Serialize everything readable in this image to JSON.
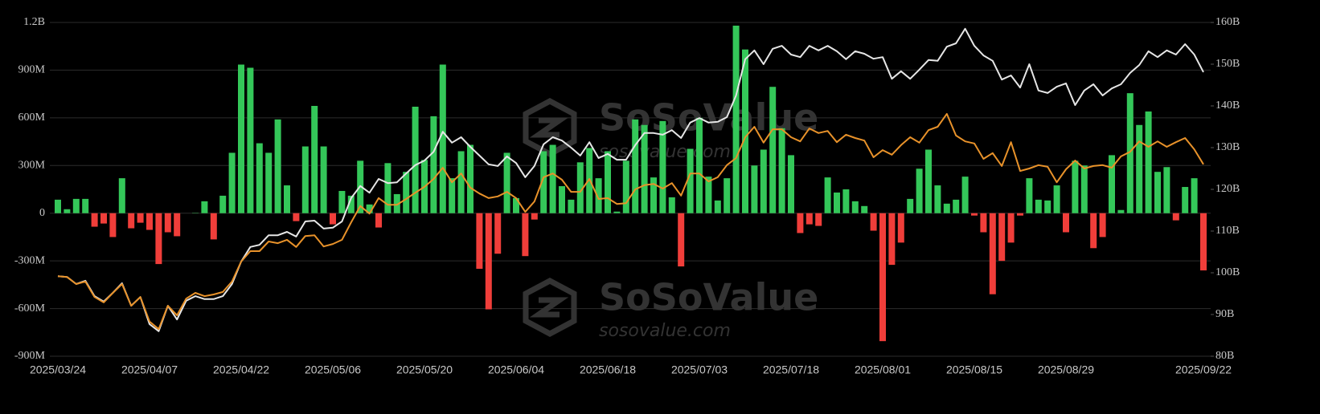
{
  "chart_data": {
    "type": "bar",
    "watermark": {
      "title": "SoSoValue",
      "url": "sosovalue.com"
    },
    "categories": [
      "2025/03/24",
      null,
      null,
      null,
      null,
      null,
      null,
      null,
      null,
      null,
      "2025/04/07",
      null,
      null,
      null,
      null,
      null,
      null,
      null,
      null,
      null,
      "2025/04/22",
      null,
      null,
      null,
      null,
      null,
      null,
      null,
      null,
      null,
      "2025/05/06",
      null,
      null,
      null,
      null,
      null,
      null,
      null,
      null,
      null,
      "2025/05/20",
      null,
      null,
      null,
      null,
      null,
      null,
      null,
      null,
      null,
      "2025/06/04",
      null,
      null,
      null,
      null,
      null,
      null,
      null,
      null,
      null,
      "2025/06/18",
      null,
      null,
      null,
      null,
      null,
      null,
      null,
      null,
      null,
      "2025/07/03",
      null,
      null,
      null,
      null,
      null,
      null,
      null,
      null,
      null,
      "2025/07/18",
      null,
      null,
      null,
      null,
      null,
      null,
      null,
      null,
      null,
      "2025/08/01",
      null,
      null,
      null,
      null,
      null,
      null,
      null,
      null,
      null,
      "2025/08/15",
      null,
      null,
      null,
      null,
      null,
      null,
      null,
      null,
      null,
      "2025/08/29",
      null,
      null,
      null,
      null,
      null,
      null,
      null,
      null,
      null,
      null,
      null,
      null,
      null,
      null,
      "2025/09/22"
    ],
    "series": [
      {
        "type": "bar",
        "color": "#34c759",
        "negative_color": "#f03e3a",
        "axis": "y",
        "values": [
          85,
          25,
          90,
          90,
          -85,
          -65,
          -150,
          220,
          -95,
          -60,
          -105,
          -320,
          -120,
          -145,
          0,
          2,
          75,
          -165,
          110,
          380,
          935,
          915,
          440,
          380,
          590,
          175,
          -50,
          420,
          675,
          420,
          -70,
          140,
          110,
          330,
          55,
          -90,
          315,
          120,
          260,
          670,
          335,
          610,
          935,
          220,
          390,
          430,
          -350,
          -605,
          -255,
          380,
          95,
          -270,
          -40,
          390,
          430,
          170,
          85,
          320,
          410,
          220,
          390,
          10,
          330,
          590,
          555,
          225,
          580,
          100,
          -335,
          405,
          600,
          230,
          80,
          220,
          1180,
          1030,
          300,
          400,
          795,
          535,
          365,
          -125,
          -70,
          -80,
          225,
          130,
          150,
          75,
          45,
          -110,
          -805,
          -325,
          -185,
          90,
          280,
          400,
          175,
          60,
          85,
          230,
          -15,
          -120,
          -510,
          -300,
          -185,
          -15,
          220,
          85,
          80,
          175,
          -120,
          330,
          300,
          -220,
          -150,
          365,
          20,
          755,
          555,
          640,
          260,
          290,
          -45,
          165,
          220,
          -360
        ]
      },
      {
        "type": "line",
        "color": "#e6e6e6",
        "axis": "y2",
        "values": [
          99.2,
          99.0,
          97.3,
          98.1,
          94.4,
          93.1,
          95.2,
          97.5,
          92.1,
          94.2,
          87.7,
          86.0,
          92.1,
          88.8,
          93.3,
          94.4,
          93.7,
          93.7,
          94.4,
          97.3,
          102.7,
          106.2,
          106.7,
          109.0,
          109.0,
          109.8,
          108.7,
          112.3,
          112.5,
          110.6,
          110.8,
          112.3,
          117.9,
          120.8,
          119.2,
          122.5,
          121.5,
          121.7,
          123.8,
          125.8,
          126.9,
          129.0,
          133.8,
          131.2,
          132.5,
          130.2,
          128.1,
          126.0,
          125.6,
          127.9,
          126.3,
          122.9,
          125.6,
          130.8,
          132.5,
          131.7,
          130.0,
          128.1,
          131.3,
          127.5,
          128.5,
          127.1,
          127.1,
          130.6,
          133.5,
          133.5,
          133.1,
          134.2,
          132.3,
          136.0,
          137.1,
          136.0,
          136.2,
          137.3,
          142.5,
          151.2,
          153.3,
          150.0,
          153.7,
          154.4,
          152.3,
          151.7,
          154.4,
          153.3,
          154.4,
          153.1,
          151.2,
          153.1,
          152.5,
          151.3,
          151.7,
          146.5,
          148.3,
          146.5,
          148.7,
          151.0,
          150.8,
          154.2,
          155.0,
          158.5,
          154.4,
          152.1,
          150.8,
          146.3,
          147.3,
          144.4,
          150.0,
          143.7,
          143.1,
          144.6,
          145.4,
          140.2,
          143.7,
          145.2,
          142.5,
          144.2,
          145.2,
          147.9,
          149.8,
          153.1,
          151.7,
          153.3,
          152.3,
          154.8,
          152.3,
          148.1
        ]
      },
      {
        "type": "line",
        "color": "#e8922a",
        "axis": "y2",
        "values": [
          99.2,
          99.0,
          97.3,
          97.9,
          94.2,
          92.9,
          95.2,
          97.3,
          92.1,
          94.2,
          88.3,
          86.5,
          92.1,
          89.8,
          93.8,
          95.2,
          94.4,
          94.8,
          95.4,
          97.9,
          102.7,
          105.2,
          105.2,
          107.5,
          107.1,
          107.9,
          106.2,
          108.8,
          109.0,
          106.3,
          106.9,
          107.9,
          112.1,
          116.0,
          114.2,
          117.9,
          116.3,
          116.3,
          117.7,
          119.2,
          120.6,
          122.5,
          125.2,
          121.7,
          123.8,
          120.4,
          119.0,
          117.9,
          118.3,
          119.4,
          117.9,
          114.6,
          117.1,
          122.9,
          123.8,
          122.3,
          119.4,
          119.4,
          122.5,
          117.7,
          117.9,
          116.5,
          116.7,
          120.0,
          121.0,
          121.3,
          120.2,
          121.5,
          118.5,
          123.8,
          123.8,
          121.9,
          122.9,
          125.8,
          127.5,
          132.5,
          135.0,
          131.2,
          134.4,
          134.4,
          132.5,
          131.5,
          134.6,
          133.5,
          134.0,
          131.3,
          133.1,
          132.3,
          131.7,
          127.7,
          129.4,
          128.3,
          130.6,
          132.5,
          131.2,
          134.2,
          135.0,
          138.1,
          132.9,
          131.5,
          131.0,
          127.3,
          128.7,
          125.6,
          131.3,
          124.4,
          125.0,
          125.8,
          125.4,
          121.7,
          124.8,
          126.9,
          125.0,
          125.6,
          125.8,
          125.2,
          127.9,
          129.0,
          131.5,
          130.2,
          131.5,
          130.2,
          131.3,
          132.3,
          129.6,
          126.0
        ]
      }
    ],
    "ylim": [
      -900,
      1200
    ],
    "yticks": [
      {
        "value": -900,
        "label": "-900M"
      },
      {
        "value": -600,
        "label": "-600M"
      },
      {
        "value": -300,
        "label": "-300M"
      },
      0,
      {
        "value": 300,
        "label": "300M"
      },
      {
        "value": 600,
        "label": "600M"
      },
      {
        "value": 900,
        "label": "900M"
      },
      {
        "value": 1200,
        "label": "1.2B"
      }
    ],
    "y2lim": [
      80,
      160
    ],
    "y2ticks": [
      {
        "value": 80,
        "label": "80B"
      },
      {
        "value": 90,
        "label": "90B"
      },
      {
        "value": 100,
        "label": "100B"
      },
      {
        "value": 110,
        "label": "110B"
      },
      {
        "value": 120,
        "label": "120B"
      },
      {
        "value": 130,
        "label": "130B"
      },
      {
        "value": 140,
        "label": "140B"
      },
      {
        "value": 150,
        "label": "150B"
      },
      {
        "value": 160,
        "label": "160B"
      }
    ],
    "grid": true
  }
}
